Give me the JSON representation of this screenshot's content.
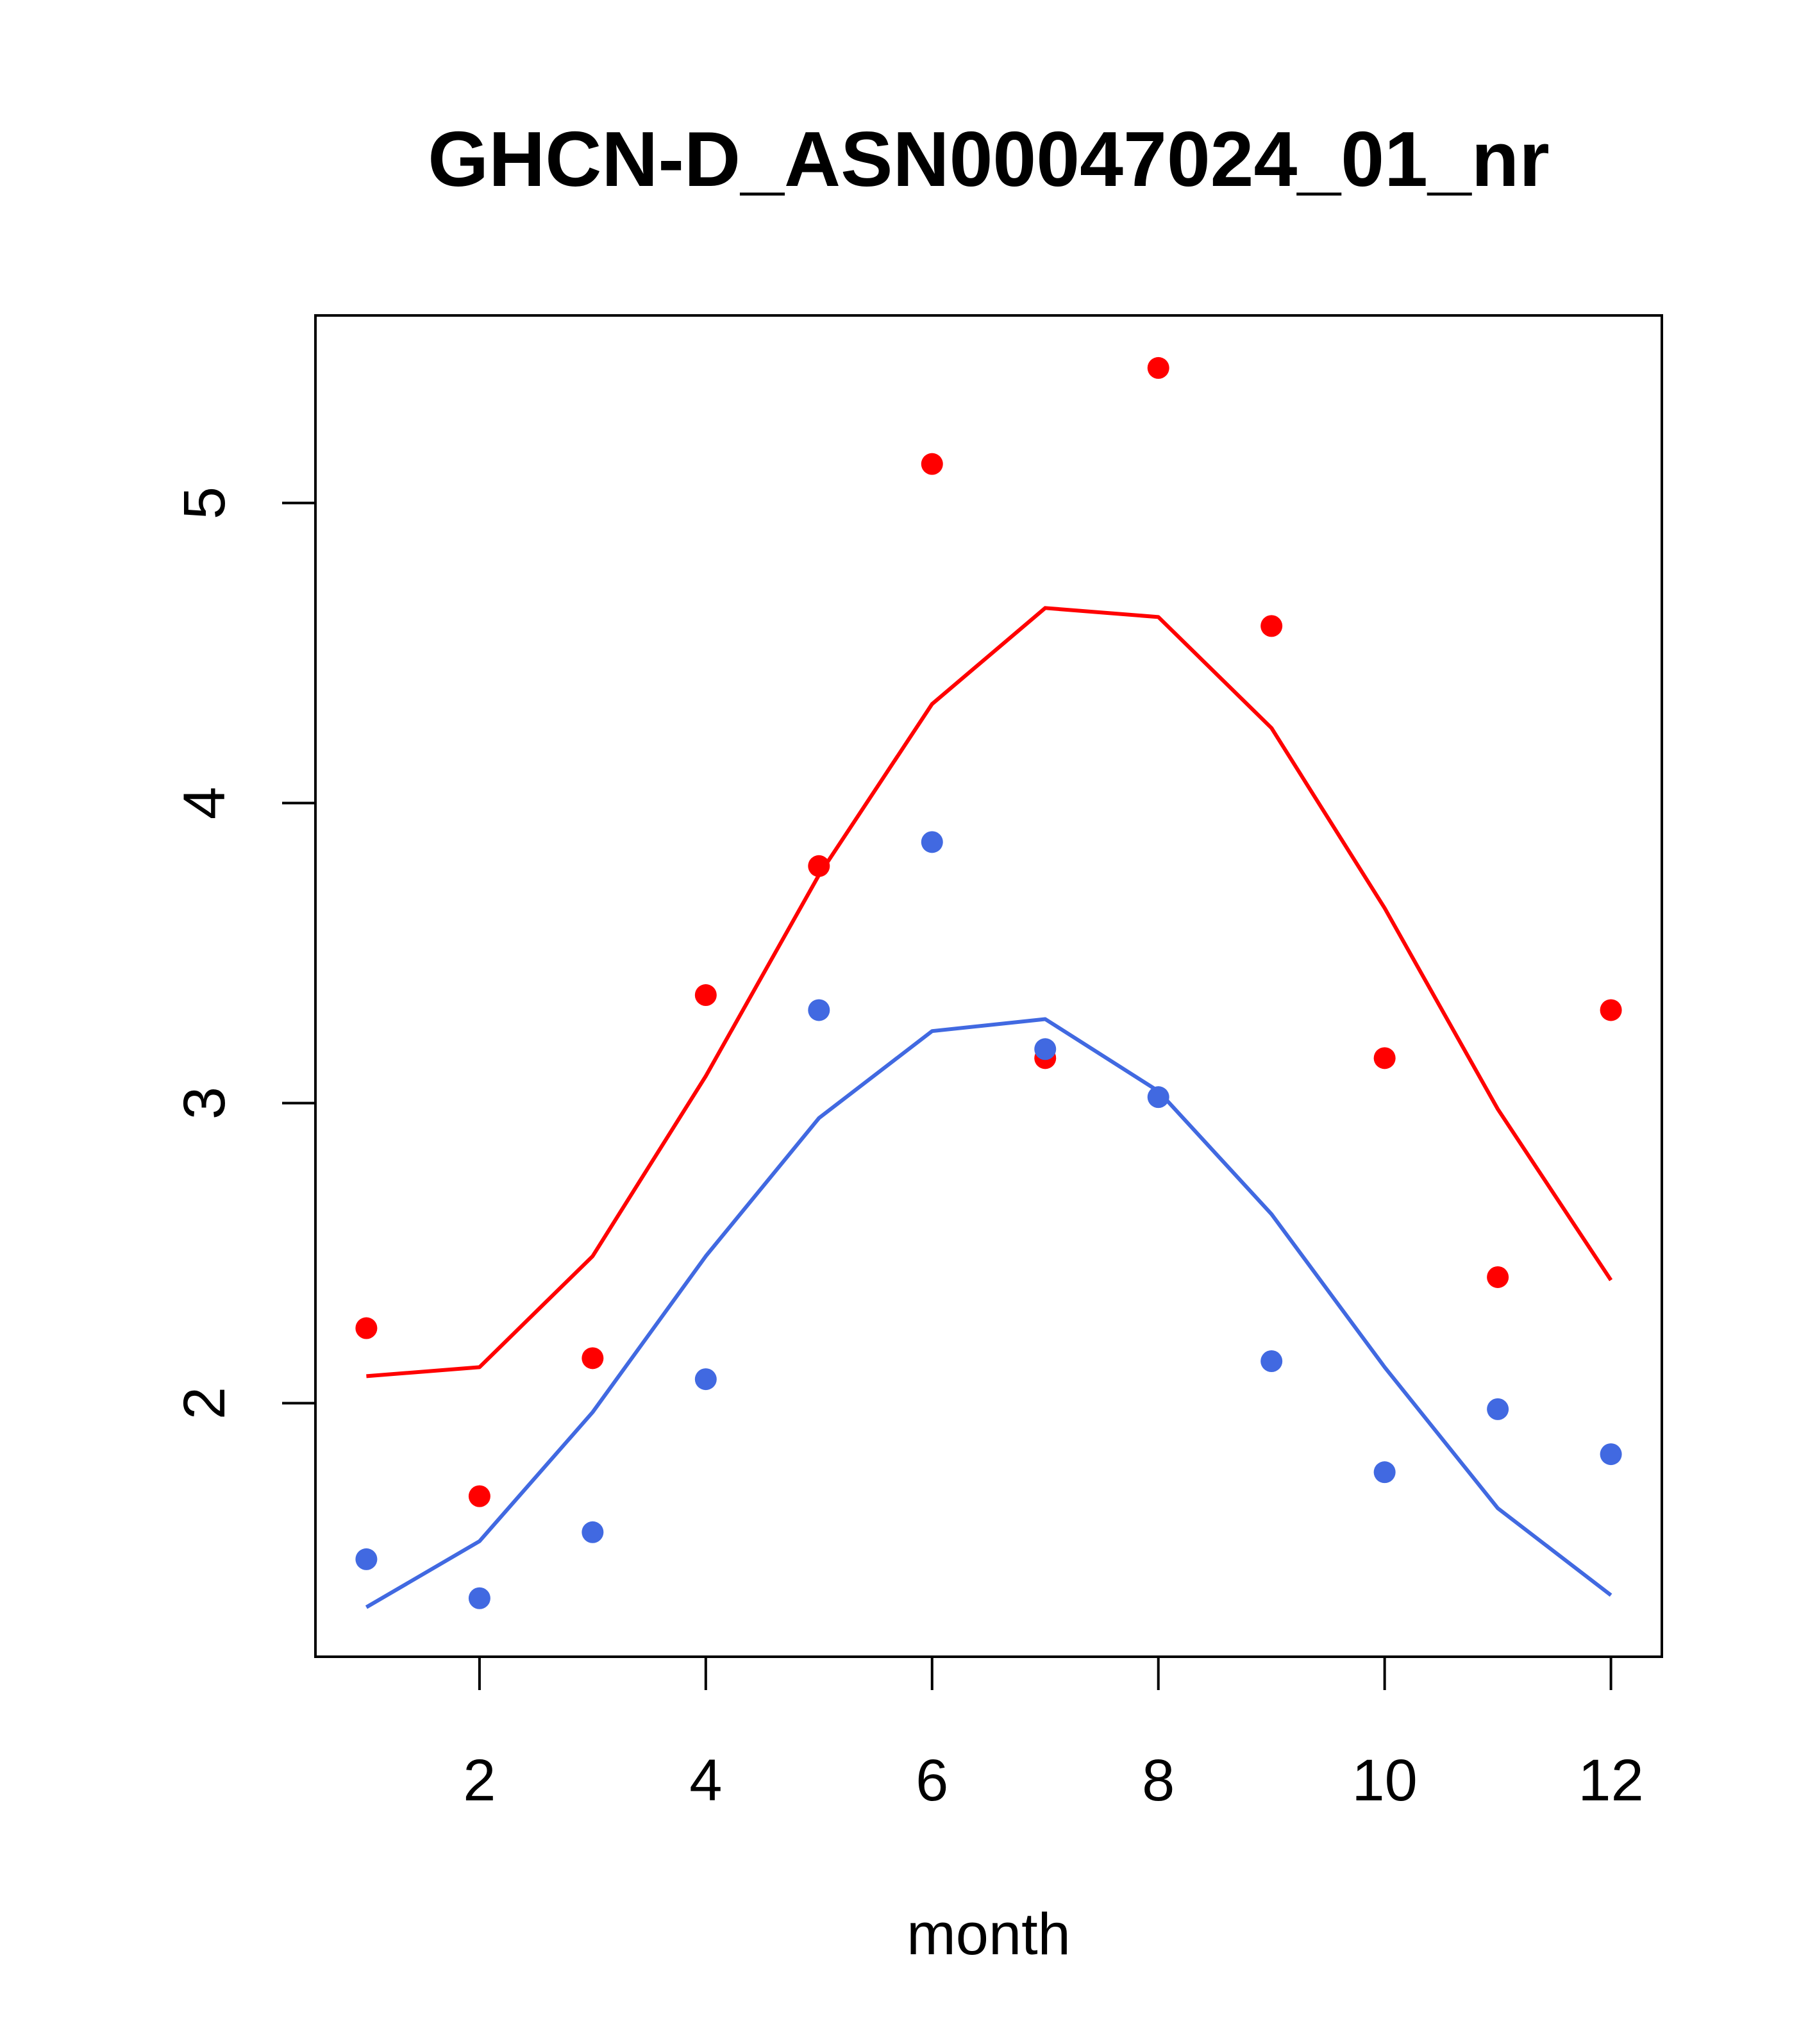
{
  "chart_data": {
    "type": "line",
    "title": "GHCN-D_ASN00047024_01_nr",
    "xlabel": "month",
    "ylabel": "",
    "xlim": [
      0.55,
      12.45
    ],
    "ylim": [
      1.155,
      5.625
    ],
    "x_ticks": [
      2,
      4,
      6,
      8,
      10,
      12
    ],
    "y_ticks": [
      2,
      3,
      4,
      5
    ],
    "grid": false,
    "legend": "none",
    "series": [
      {
        "color": "#ff0000",
        "x": [
          1,
          2,
          3,
          4,
          5,
          6,
          7,
          8,
          9,
          10,
          11,
          12
        ],
        "points": [
          2.25,
          1.69,
          2.15,
          3.36,
          3.79,
          5.13,
          3.15,
          5.45,
          4.59,
          3.15,
          2.42,
          3.31
        ],
        "line": [
          2.09,
          2.12,
          2.49,
          3.09,
          3.76,
          4.33,
          4.65,
          4.62,
          4.25,
          3.65,
          2.98,
          2.41
        ]
      },
      {
        "color": "#4169e1",
        "x": [
          1,
          2,
          3,
          4,
          5,
          6,
          7,
          8,
          9,
          10,
          11,
          12
        ],
        "points": [
          1.48,
          1.35,
          1.57,
          2.08,
          3.31,
          3.87,
          3.18,
          3.02,
          2.14,
          1.77,
          1.98,
          1.83
        ],
        "line": [
          1.32,
          1.54,
          1.97,
          2.49,
          2.95,
          3.24,
          3.28,
          3.04,
          2.63,
          2.12,
          1.65,
          1.36
        ]
      }
    ]
  }
}
